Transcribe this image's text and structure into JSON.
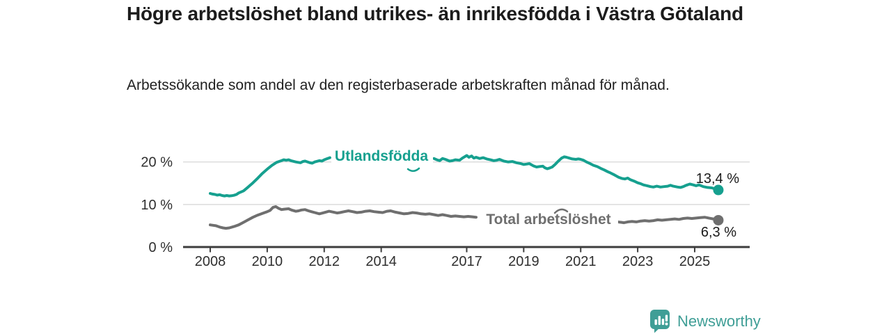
{
  "header": {
    "title": "Högre arbetslöshet bland utrikes- än inrikesfödda i Västra Götaland",
    "subtitle": "Arbetssökande som andel av den registerbaserade arbetskraften månad för månad."
  },
  "footer": {
    "brand": "Newsworthy",
    "brand_color": "#3f9e96"
  },
  "chart_data": {
    "type": "line",
    "title": "Högre arbetslöshet bland utrikes- än inrikesfödda i Västra Götaland",
    "subtitle": "Arbetssökande som andel av den registerbaserade arbetskraften månad för månad.",
    "xlabel": "",
    "ylabel": "",
    "x_unit": "year (monthly data)",
    "y_unit": "%",
    "x_range": [
      2007.05,
      2026.95
    ],
    "y_range": [
      0,
      24.5
    ],
    "grid": "horizontal",
    "legend_position": "inline-labels",
    "colors": {
      "grid": "#dcdcdc",
      "axis": "#3d3d3d",
      "tick_text": "#2f2f2f",
      "value_text": "#1a1a1a"
    },
    "y_ticks": [
      {
        "value": 0,
        "label": "0 %"
      },
      {
        "value": 10,
        "label": "10 %"
      },
      {
        "value": 20,
        "label": "20 %"
      }
    ],
    "x_ticks": [
      2008,
      2010,
      2012,
      2014,
      2017,
      2019,
      2021,
      2023,
      2025
    ],
    "series": [
      {
        "id": "utlandsfodda",
        "name": "Utlandsfödda",
        "color": "#16a08f",
        "end_value": 13.4,
        "end_label": "13,4 %",
        "segments": [
          [
            [
              2008,
              12.6
            ],
            [
              2008.08,
              12.45
            ],
            [
              2008.17,
              12.35
            ],
            [
              2008.25,
              12.2
            ],
            [
              2008.33,
              12.3
            ],
            [
              2008.42,
              12.1
            ],
            [
              2008.5,
              12.0
            ],
            [
              2008.58,
              12.1
            ],
            [
              2008.67,
              12.0
            ],
            [
              2008.75,
              12.05
            ],
            [
              2008.83,
              12.15
            ],
            [
              2008.92,
              12.35
            ],
            [
              2009,
              12.7
            ],
            [
              2009.17,
              13.2
            ],
            [
              2009.33,
              14.1
            ],
            [
              2009.5,
              15.1
            ],
            [
              2009.67,
              16.2
            ],
            [
              2009.83,
              17.3
            ],
            [
              2010,
              18.3
            ],
            [
              2010.17,
              19.2
            ],
            [
              2010.33,
              19.9
            ],
            [
              2010.5,
              20.3
            ],
            [
              2010.58,
              20.5
            ],
            [
              2010.67,
              20.4
            ],
            [
              2010.75,
              20.5
            ],
            [
              2010.83,
              20.3
            ],
            [
              2011,
              20.0
            ],
            [
              2011.08,
              19.9
            ],
            [
              2011.17,
              19.8
            ],
            [
              2011.25,
              20.1
            ],
            [
              2011.33,
              20.2
            ],
            [
              2011.5,
              19.8
            ],
            [
              2011.58,
              19.7
            ],
            [
              2011.67,
              20.0
            ],
            [
              2011.83,
              20.3
            ],
            [
              2011.92,
              20.2
            ],
            [
              2012,
              20.5
            ],
            [
              2012.08,
              20.7
            ],
            [
              2012.2,
              21.0
            ]
          ],
          [
            [
              2015.85,
              20.8
            ],
            [
              2015.95,
              20.5
            ],
            [
              2016.05,
              20.3
            ],
            [
              2016.15,
              20.8
            ],
            [
              2016.25,
              20.6
            ],
            [
              2016.4,
              20.2
            ],
            [
              2016.5,
              20.3
            ],
            [
              2016.6,
              20.5
            ],
            [
              2016.75,
              20.4
            ],
            [
              2016.85,
              20.9
            ],
            [
              2017,
              21.5
            ],
            [
              2017.08,
              21.1
            ],
            [
              2017.17,
              21.4
            ],
            [
              2017.25,
              20.9
            ],
            [
              2017.33,
              21.1
            ],
            [
              2017.45,
              20.8
            ],
            [
              2017.58,
              21.0
            ],
            [
              2017.7,
              20.7
            ],
            [
              2017.83,
              20.5
            ],
            [
              2017.95,
              20.3
            ],
            [
              2018.05,
              20.4
            ],
            [
              2018.15,
              20.6
            ],
            [
              2018.3,
              20.2
            ],
            [
              2018.45,
              20.0
            ],
            [
              2018.6,
              20.1
            ],
            [
              2018.75,
              19.8
            ],
            [
              2018.9,
              19.6
            ],
            [
              2019,
              19.4
            ],
            [
              2019.1,
              19.5
            ],
            [
              2019.2,
              19.6
            ],
            [
              2019.33,
              19.1
            ],
            [
              2019.45,
              18.8
            ],
            [
              2019.55,
              18.9
            ],
            [
              2019.67,
              19.0
            ],
            [
              2019.75,
              18.6
            ],
            [
              2019.83,
              18.4
            ],
            [
              2019.92,
              18.6
            ],
            [
              2020,
              18.8
            ],
            [
              2020.1,
              19.4
            ],
            [
              2020.2,
              20.1
            ],
            [
              2020.33,
              20.9
            ],
            [
              2020.42,
              21.2
            ],
            [
              2020.5,
              21.1
            ],
            [
              2020.6,
              20.9
            ],
            [
              2020.7,
              20.7
            ],
            [
              2020.83,
              20.6
            ],
            [
              2020.92,
              20.7
            ],
            [
              2021,
              20.6
            ],
            [
              2021.1,
              20.4
            ],
            [
              2021.2,
              20.0
            ],
            [
              2021.33,
              19.6
            ],
            [
              2021.45,
              19.2
            ],
            [
              2021.58,
              18.9
            ],
            [
              2021.7,
              18.5
            ],
            [
              2021.83,
              18.1
            ],
            [
              2021.95,
              17.7
            ],
            [
              2022.05,
              17.4
            ],
            [
              2022.2,
              16.9
            ],
            [
              2022.33,
              16.4
            ],
            [
              2022.45,
              16.1
            ],
            [
              2022.55,
              16.0
            ],
            [
              2022.65,
              16.2
            ],
            [
              2022.75,
              15.8
            ],
            [
              2022.87,
              15.5
            ],
            [
              2023,
              15.1
            ],
            [
              2023.1,
              14.9
            ],
            [
              2023.2,
              14.6
            ],
            [
              2023.33,
              14.4
            ],
            [
              2023.45,
              14.2
            ],
            [
              2023.55,
              14.1
            ],
            [
              2023.67,
              14.3
            ],
            [
              2023.8,
              14.1
            ],
            [
              2023.92,
              14.2
            ],
            [
              2024.05,
              14.3
            ],
            [
              2024.15,
              14.5
            ],
            [
              2024.25,
              14.3
            ],
            [
              2024.4,
              14.1
            ],
            [
              2024.5,
              14.0
            ],
            [
              2024.6,
              14.2
            ],
            [
              2024.7,
              14.5
            ],
            [
              2024.83,
              14.8
            ],
            [
              2024.95,
              14.6
            ],
            [
              2025.05,
              14.4
            ],
            [
              2025.15,
              14.6
            ],
            [
              2025.3,
              14.2
            ],
            [
              2025.45,
              14.0
            ],
            [
              2025.6,
              13.9
            ],
            [
              2025.7,
              13.7
            ],
            [
              2025.83,
              13.4
            ]
          ]
        ]
      },
      {
        "id": "total-arbetsloshet",
        "name": "Total arbetslöshet",
        "color": "#6f6f6f",
        "end_value": 6.3,
        "end_label": "6,3 %",
        "segments": [
          [
            [
              2008,
              5.2
            ],
            [
              2008.1,
              5.1
            ],
            [
              2008.2,
              5.0
            ],
            [
              2008.33,
              4.7
            ],
            [
              2008.45,
              4.5
            ],
            [
              2008.55,
              4.4
            ],
            [
              2008.67,
              4.5
            ],
            [
              2008.83,
              4.8
            ],
            [
              2009,
              5.2
            ],
            [
              2009.17,
              5.8
            ],
            [
              2009.33,
              6.4
            ],
            [
              2009.5,
              7.0
            ],
            [
              2009.67,
              7.5
            ],
            [
              2009.83,
              7.9
            ],
            [
              2010,
              8.3
            ],
            [
              2010.1,
              8.6
            ],
            [
              2010.2,
              9.3
            ],
            [
              2010.3,
              9.5
            ],
            [
              2010.4,
              9.1
            ],
            [
              2010.5,
              8.8
            ],
            [
              2010.6,
              8.9
            ],
            [
              2010.75,
              9.0
            ],
            [
              2010.85,
              8.7
            ],
            [
              2011,
              8.4
            ],
            [
              2011.1,
              8.5
            ],
            [
              2011.2,
              8.7
            ],
            [
              2011.33,
              8.8
            ],
            [
              2011.45,
              8.5
            ],
            [
              2011.55,
              8.3
            ],
            [
              2011.67,
              8.1
            ],
            [
              2011.83,
              7.8
            ],
            [
              2011.95,
              8.0
            ],
            [
              2012.05,
              8.2
            ],
            [
              2012.17,
              8.4
            ],
            [
              2012.33,
              8.2
            ],
            [
              2012.45,
              8.0
            ],
            [
              2012.55,
              8.1
            ],
            [
              2012.7,
              8.3
            ],
            [
              2012.85,
              8.5
            ],
            [
              2013,
              8.3
            ],
            [
              2013.15,
              8.1
            ],
            [
              2013.3,
              8.2
            ],
            [
              2013.45,
              8.4
            ],
            [
              2013.6,
              8.5
            ],
            [
              2013.75,
              8.3
            ],
            [
              2013.9,
              8.2
            ],
            [
              2014.05,
              8.1
            ],
            [
              2014.2,
              8.4
            ],
            [
              2014.33,
              8.5
            ],
            [
              2014.5,
              8.2
            ],
            [
              2014.65,
              8.0
            ],
            [
              2014.8,
              7.8
            ],
            [
              2014.95,
              7.9
            ],
            [
              2015.1,
              8.1
            ],
            [
              2015.25,
              8.0
            ],
            [
              2015.4,
              7.8
            ],
            [
              2015.55,
              7.7
            ],
            [
              2015.7,
              7.8
            ],
            [
              2015.85,
              7.6
            ],
            [
              2016,
              7.4
            ],
            [
              2016.15,
              7.6
            ],
            [
              2016.3,
              7.4
            ],
            [
              2016.45,
              7.2
            ],
            [
              2016.6,
              7.3
            ],
            [
              2016.75,
              7.2
            ],
            [
              2016.9,
              7.1
            ],
            [
              2017.05,
              7.2
            ],
            [
              2017.2,
              7.1
            ],
            [
              2017.33,
              7.0
            ]
          ],
          [
            [
              2022.3,
              5.9
            ],
            [
              2022.42,
              5.8
            ],
            [
              2022.52,
              5.7
            ],
            [
              2022.65,
              5.9
            ],
            [
              2022.8,
              6.0
            ],
            [
              2022.95,
              5.9
            ],
            [
              2023.1,
              6.1
            ],
            [
              2023.25,
              6.2
            ],
            [
              2023.4,
              6.1
            ],
            [
              2023.55,
              6.2
            ],
            [
              2023.7,
              6.4
            ],
            [
              2023.85,
              6.3
            ],
            [
              2024,
              6.4
            ],
            [
              2024.15,
              6.5
            ],
            [
              2024.3,
              6.6
            ],
            [
              2024.45,
              6.5
            ],
            [
              2024.6,
              6.7
            ],
            [
              2024.75,
              6.8
            ],
            [
              2024.9,
              6.7
            ],
            [
              2025.05,
              6.8
            ],
            [
              2025.2,
              6.9
            ],
            [
              2025.35,
              7.0
            ],
            [
              2025.5,
              6.8
            ],
            [
              2025.65,
              6.6
            ],
            [
              2025.83,
              6.3
            ]
          ]
        ]
      }
    ]
  }
}
